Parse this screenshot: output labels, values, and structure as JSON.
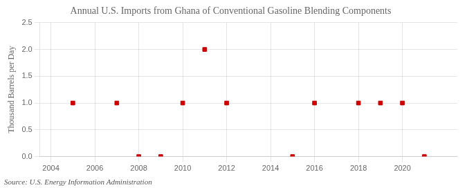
{
  "chart_data": {
    "type": "scatter",
    "title": "Annual U.S. Imports from Ghana of Conventional Gasoline Blending Components",
    "y_label": "Thousand Barrels per Day",
    "source": "Source: U.S. Energy Information Administration",
    "x": [
      2005,
      2007,
      2008,
      2009,
      2010,
      2011,
      2012,
      2015,
      2016,
      2018,
      2019,
      2020,
      2021
    ],
    "values": [
      1.0,
      1.0,
      0.0,
      0.0,
      1.0,
      2.0,
      1.0,
      0.0,
      1.0,
      1.0,
      1.0,
      1.0,
      0.0
    ],
    "color": "#cc0000",
    "marker": "square",
    "xlim": [
      2003.5,
      2022.5
    ],
    "xticks": [
      2004,
      2006,
      2008,
      2010,
      2012,
      2014,
      2016,
      2018,
      2020
    ],
    "ylim": [
      0.0,
      2.5
    ],
    "yticks": [
      {
        "value": 0,
        "label": "0.0"
      },
      0.5,
      {
        "value": 1,
        "label": "1.0"
      },
      1.5,
      {
        "value": 2,
        "label": "2.0"
      },
      2.5
    ],
    "grid": true
  }
}
